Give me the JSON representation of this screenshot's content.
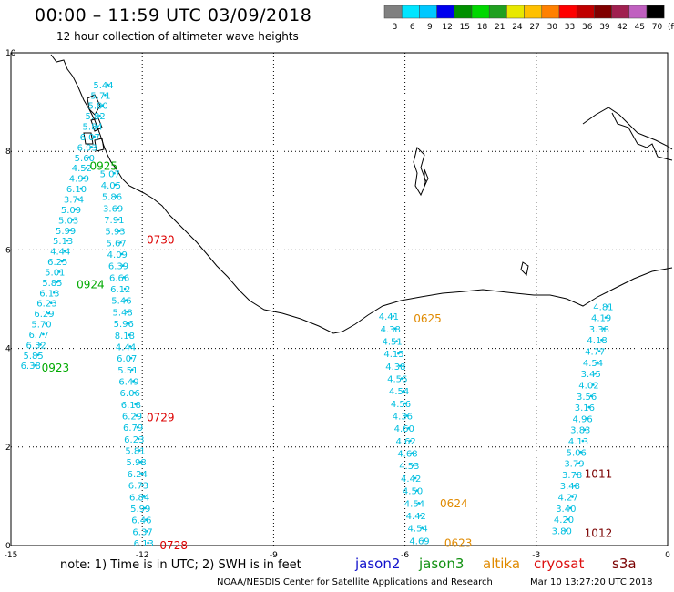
{
  "header": {
    "title": "00:00 – 11:59 UTC 03/09/2018",
    "subtitle": "12 hour collection of altimeter wave heights"
  },
  "colorbar": {
    "unit": "(ft)",
    "labels": [
      "3",
      "6",
      "9",
      "12",
      "15",
      "18",
      "21",
      "24",
      "27",
      "30",
      "33",
      "36",
      "39",
      "42",
      "45",
      "70"
    ],
    "colors": [
      "#808080",
      "#00e5ff",
      "#00c8ff",
      "#0000ee",
      "#009000",
      "#00d800",
      "#20a020",
      "#e8e800",
      "#ffc000",
      "#ff8000",
      "#ff0000",
      "#c00000",
      "#800000",
      "#a02050",
      "#c060c0",
      "#000000"
    ]
  },
  "axes": {
    "x_ticks": [
      "-15",
      "-12",
      "-9",
      "-6",
      "-3",
      "0"
    ],
    "y_ticks": [
      "0",
      "2",
      "4",
      "6",
      "8",
      "10"
    ],
    "xlim": [
      -15,
      0
    ],
    "ylim": [
      0,
      10
    ]
  },
  "tracks": [
    {
      "satellite": "jason3",
      "time": "0925",
      "color": "#00aa00",
      "lon": -13.2,
      "lat": 7.7,
      "values": [
        "5.44",
        "5.71",
        "5.80",
        "5.82",
        "5.84",
        "6.07",
        "6.93",
        "5.60",
        "4.52",
        "4.99",
        "6.10",
        "3.74",
        "5.09",
        "5.03",
        "5.99",
        "5.13",
        "4.44",
        "6.25",
        "5.01",
        "5.85",
        "6.13",
        "6.23",
        "6.29",
        "5.70",
        "6.77",
        "6.32",
        "5.85",
        "6.38"
      ],
      "lon_start": -13.12,
      "lat_start": 9.3,
      "lon_end": -14.78,
      "lat_end": 3.6
    },
    {
      "satellite": "jason3",
      "time": "0924",
      "color": "#00aa00",
      "lon": -13.5,
      "lat": 5.3,
      "values": []
    },
    {
      "satellite": "jason3",
      "time": "0923",
      "color": "#00aa00",
      "lon": -14.3,
      "lat": 3.6,
      "values": []
    },
    {
      "satellite": "cryosat",
      "time": "0730",
      "color": "#dd0000",
      "lon": -11.9,
      "lat": 6.2,
      "values": [
        "5.07",
        "4.05",
        "5.86",
        "3.69",
        "7.91",
        "5.93",
        "5.67",
        "4.09",
        "6.39",
        "6.66",
        "6.12",
        "5.46",
        "5.48",
        "5.96",
        "8.18",
        "4.44",
        "6.07",
        "5.51",
        "6.49",
        "6.06",
        "6.18",
        "6.29",
        "6.79",
        "6.23",
        "5.81",
        "5.98",
        "6.24",
        "6.73",
        "6.84",
        "5.99",
        "6.46",
        "6.37",
        "6.13"
      ],
      "lon_start": -12.97,
      "lat_start": 7.5,
      "lon_end": -12.2,
      "lat_end": 0.0
    },
    {
      "satellite": "cryosat",
      "time": "0729",
      "color": "#dd0000",
      "lon": -11.9,
      "lat": 2.6,
      "values": []
    },
    {
      "satellite": "cryosat",
      "time": "0728",
      "color": "#dd0000",
      "lon": -11.6,
      "lat": 0.0,
      "values": []
    },
    {
      "satellite": "altika",
      "time": "0625",
      "color": "#e08a00",
      "lon": -5.8,
      "lat": 4.6,
      "values": [
        "4.41",
        "4.38",
        "4.51",
        "4.15",
        "4.38",
        "4.56",
        "4.54",
        "4.56",
        "4.36",
        "4.60",
        "4.62",
        "4.68",
        "4.53",
        "4.42",
        "4.50",
        "4.54",
        "4.42",
        "4.54",
        "4.69"
      ],
      "lon_start": -6.6,
      "lat_start": 4.6,
      "lon_end": -5.9,
      "lat_end": 0.05
    },
    {
      "satellite": "altika",
      "time": "0624",
      "color": "#e08a00",
      "lon": -5.2,
      "lat": 0.85,
      "values": []
    },
    {
      "satellite": "altika",
      "time": "0623",
      "color": "#e08a00",
      "lon": -5.1,
      "lat": 0.05,
      "values": []
    },
    {
      "satellite": "s3a",
      "time": "1011",
      "color": "#7a0000",
      "lon": -1.9,
      "lat": 1.45,
      "values": [
        "4.81",
        "4.19",
        "3.38",
        "4.18",
        "4.77",
        "4.54",
        "3.45",
        "4.02",
        "3.56",
        "3.16",
        "4.96",
        "3.83",
        "4.13",
        "5.06",
        "3.79",
        "3.78",
        "3.48",
        "4.27",
        "3.40",
        "4.20",
        "3.80"
      ],
      "lon_start": -1.7,
      "lat_start": 4.8,
      "lon_end": -2.65,
      "lat_end": 0.25
    },
    {
      "satellite": "s3a",
      "time": "1012",
      "color": "#7a0000",
      "lon": -1.9,
      "lat": 0.25,
      "values": []
    }
  ],
  "legend": {
    "note": "note:  1) Time is in UTC;  2) SWH is in feet",
    "satellites": {
      "jason2": "jason2",
      "jason3": "jason3",
      "altika": "altika",
      "cryosat": "cryosat",
      "s3a": "s3a"
    }
  },
  "footer": {
    "credit": "NOAA/NESDIS Center for Satellite Applications and Research",
    "timestamp": "Mar 10 13:27:20 UTC 2018"
  }
}
